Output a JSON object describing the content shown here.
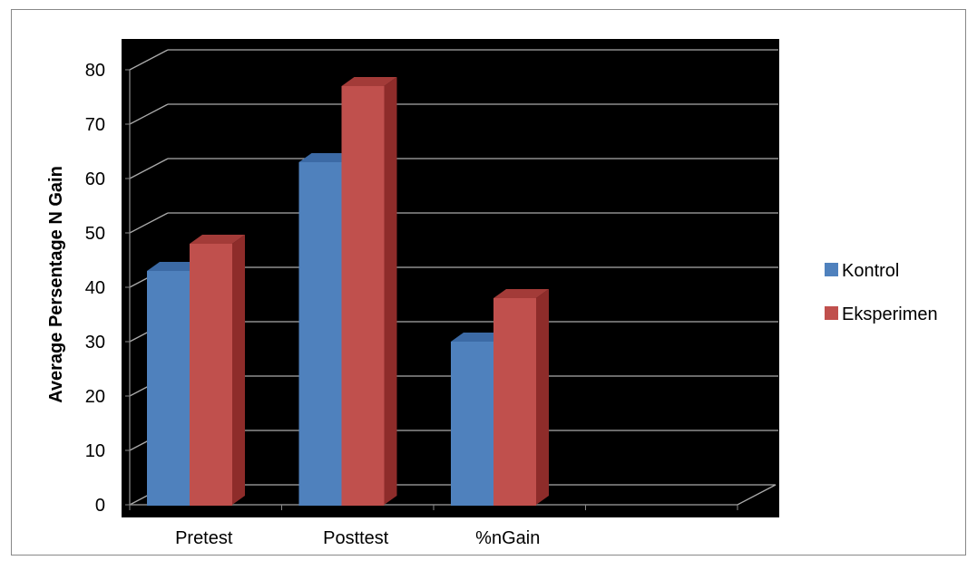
{
  "chart_data": {
    "type": "bar",
    "categories": [
      "Pretest",
      "Posttest",
      "%nGain",
      ""
    ],
    "series": [
      {
        "name": "Kontrol",
        "values": [
          43,
          63,
          30,
          null
        ],
        "color": "#4f81bd",
        "side_color": "#2f5b8f",
        "top_color": "#3c6aa5"
      },
      {
        "name": "Eksperimen",
        "values": [
          48,
          77,
          38,
          null
        ],
        "color": "#c0504d",
        "side_color": "#8e2c2a",
        "top_color": "#a33b38"
      }
    ],
    "title": "",
    "xlabel": "",
    "ylabel": "Average Persentage N Gain",
    "ylim": [
      0,
      80
    ],
    "yticks": [
      0,
      10,
      20,
      30,
      40,
      50,
      60,
      70,
      80
    ],
    "grid": true,
    "plot_background": "#000000",
    "gridline_color": "#aaaaaa",
    "legend_position": "right",
    "three_d": true
  }
}
